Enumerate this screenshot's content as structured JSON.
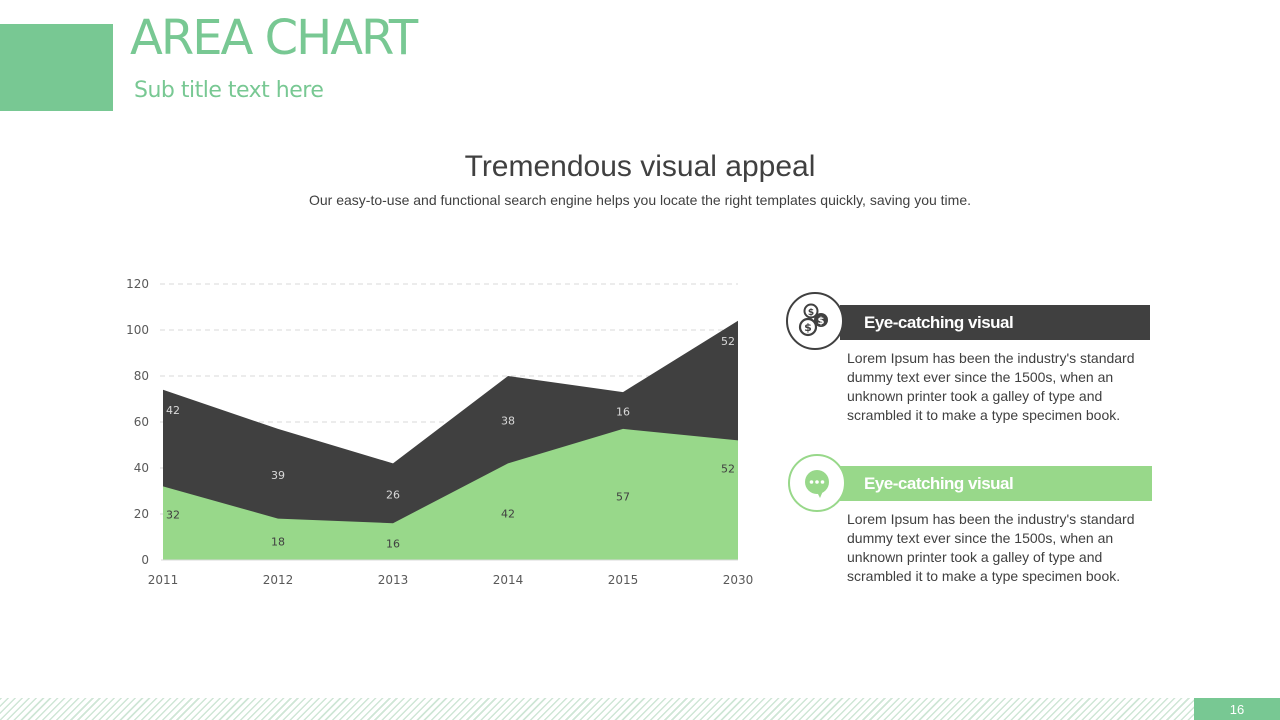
{
  "header": {
    "title": "AREA CHART",
    "subtitle": "Sub title text here"
  },
  "intro": {
    "heading": "Tremendous visual appeal",
    "description": "Our easy-to-use and functional search engine helps you locate the right templates quickly, saving you time."
  },
  "chart_data": {
    "type": "area",
    "stacked": true,
    "categories": [
      "2011",
      "2012",
      "2013",
      "2014",
      "2015",
      "2030"
    ],
    "series": [
      {
        "values": [
          32,
          18,
          16,
          42,
          57,
          52
        ],
        "color": "#98d88a"
      },
      {
        "values": [
          42,
          39,
          26,
          38,
          16,
          52
        ],
        "color": "#404040"
      }
    ],
    "yticks": [
      0,
      20,
      40,
      60,
      80,
      100,
      120
    ],
    "ylim": [
      0,
      120
    ],
    "grid": true,
    "data_labels": true,
    "title": "",
    "xlabel": "",
    "ylabel": ""
  },
  "info": [
    {
      "icon": "coins-icon",
      "title": "Eye-catching visual",
      "text": "Lorem Ipsum has been the industry's standard dummy text ever since the 1500s, when an unknown printer took a galley of type and scrambled it to make a type specimen book."
    },
    {
      "icon": "chat-bubble-icon",
      "title": "Eye-catching visual",
      "text": "Lorem Ipsum has been the industry's standard dummy text ever since the 1500s, when an unknown printer took a galley of type and scrambled it to make a type specimen book."
    }
  ],
  "colors": {
    "accent": "#78c893",
    "green": "#98d88a",
    "dark": "#404040"
  },
  "footer": {
    "page_number": "16"
  }
}
